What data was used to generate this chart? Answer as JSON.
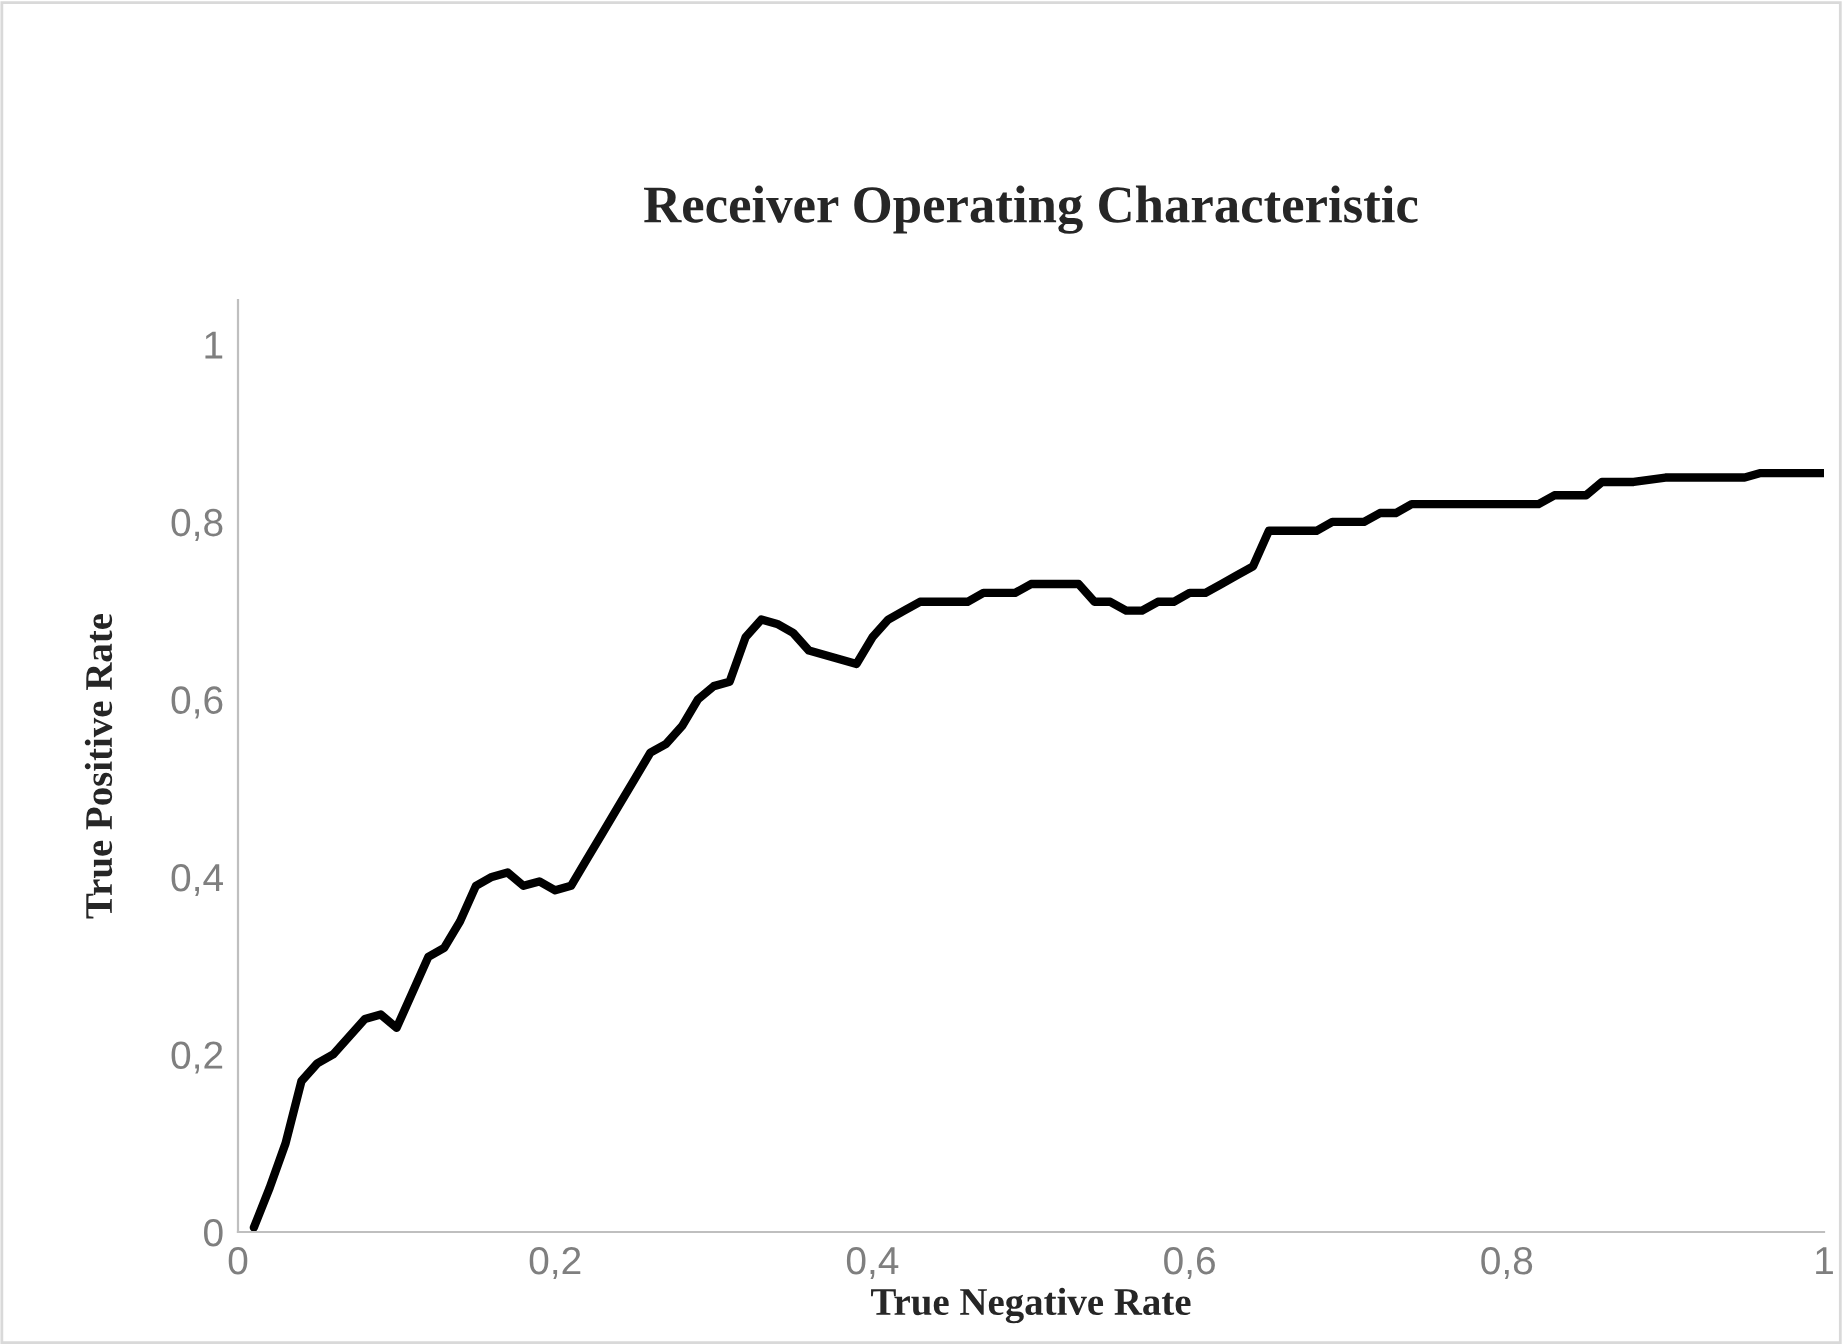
{
  "chart_data": {
    "type": "line",
    "title": "Receiver Operating Characteristic",
    "xlabel": "True Negative Rate",
    "ylabel": "True Positive Rate",
    "xlim": [
      0,
      1
    ],
    "ylim": [
      0,
      1.05
    ],
    "xticks": [
      0,
      {
        "value": 0.2,
        "label": "0,2"
      },
      {
        "value": 0.4,
        "label": "0,4"
      },
      {
        "value": 0.6,
        "label": "0,6"
      },
      {
        "value": 0.8,
        "label": "0,8"
      },
      1
    ],
    "yticks": [
      0,
      {
        "value": 0.2,
        "label": "0,2"
      },
      {
        "value": 0.4,
        "label": "0,4"
      },
      {
        "value": 0.6,
        "label": "0,6"
      },
      {
        "value": 0.8,
        "label": "0,8"
      },
      1
    ],
    "grid": false,
    "marker": "none",
    "line_style": "solid",
    "series": [
      {
        "color": "#000000",
        "x": [
          0.01,
          0.02,
          0.03,
          0.04,
          0.05,
          0.06,
          0.07,
          0.08,
          0.09,
          0.1,
          0.11,
          0.12,
          0.13,
          0.14,
          0.15,
          0.16,
          0.17,
          0.18,
          0.19,
          0.2,
          0.21,
          0.22,
          0.23,
          0.24,
          0.25,
          0.26,
          0.27,
          0.28,
          0.29,
          0.3,
          0.31,
          0.32,
          0.33,
          0.34,
          0.35,
          0.36,
          0.37,
          0.38,
          0.39,
          0.4,
          0.41,
          0.42,
          0.43,
          0.45,
          0.46,
          0.47,
          0.48,
          0.49,
          0.5,
          0.52,
          0.53,
          0.54,
          0.55,
          0.56,
          0.57,
          0.58,
          0.59,
          0.6,
          0.61,
          0.62,
          0.63,
          0.64,
          0.65,
          0.66,
          0.67,
          0.68,
          0.69,
          0.7,
          0.71,
          0.72,
          0.73,
          0.74,
          0.8,
          0.82,
          0.83,
          0.85,
          0.86,
          0.88,
          0.9,
          0.95,
          0.96,
          1.0
        ],
        "values": [
          0.005,
          0.05,
          0.1,
          0.17,
          0.19,
          0.2,
          0.22,
          0.24,
          0.245,
          0.23,
          0.27,
          0.31,
          0.32,
          0.35,
          0.39,
          0.4,
          0.405,
          0.39,
          0.395,
          0.385,
          0.39,
          0.42,
          0.45,
          0.48,
          0.51,
          0.54,
          0.55,
          0.57,
          0.6,
          0.615,
          0.62,
          0.67,
          0.69,
          0.685,
          0.675,
          0.655,
          0.65,
          0.645,
          0.64,
          0.67,
          0.69,
          0.7,
          0.71,
          0.71,
          0.71,
          0.72,
          0.72,
          0.72,
          0.73,
          0.73,
          0.73,
          0.71,
          0.71,
          0.7,
          0.7,
          0.71,
          0.71,
          0.72,
          0.72,
          0.73,
          0.74,
          0.75,
          0.79,
          0.79,
          0.79,
          0.79,
          0.8,
          0.8,
          0.8,
          0.81,
          0.81,
          0.82,
          0.82,
          0.82,
          0.83,
          0.83,
          0.845,
          0.845,
          0.85,
          0.85,
          0.855,
          0.855
        ]
      }
    ]
  }
}
